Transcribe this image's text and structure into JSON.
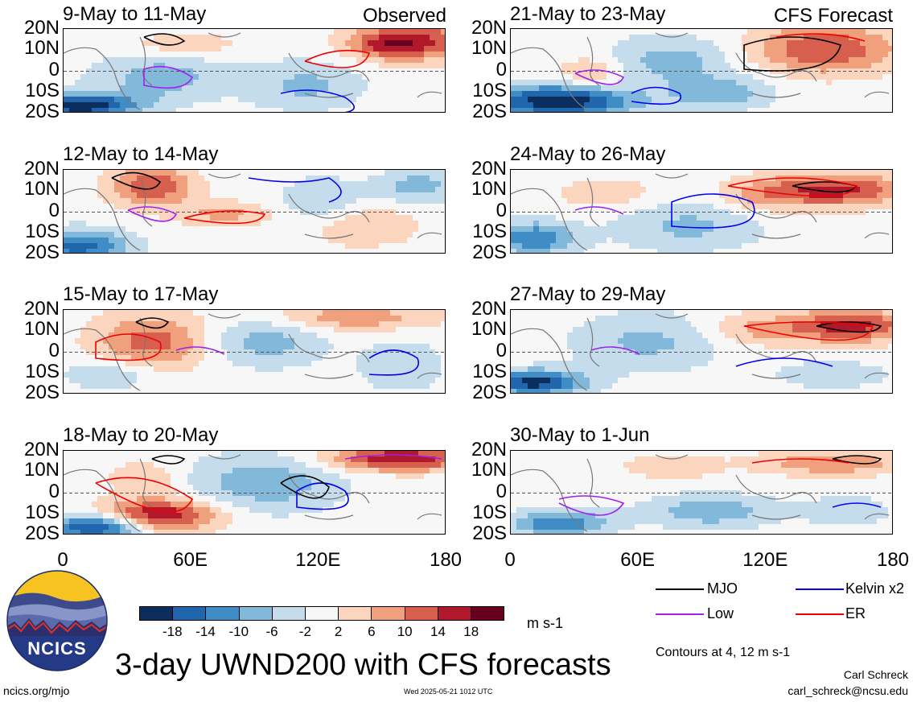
{
  "header": {
    "observed_label": "Observed",
    "forecast_label": "CFS Forecast"
  },
  "panels_left": [
    {
      "title": "9-May to 11-May"
    },
    {
      "title": "12-May to 14-May"
    },
    {
      "title": "15-May to 17-May"
    },
    {
      "title": "18-May to 20-May"
    }
  ],
  "panels_right": [
    {
      "title": "21-May to 23-May"
    },
    {
      "title": "24-May to 26-May"
    },
    {
      "title": "27-May to 29-May"
    },
    {
      "title": "30-May to 1-Jun"
    }
  ],
  "lat_labels": [
    "20N",
    "10N",
    "0",
    "10S",
    "20S"
  ],
  "lon_labels": [
    "0",
    "60E",
    "120E",
    "180"
  ],
  "colorbar": {
    "ticks": [
      "-18",
      "-14",
      "-10",
      "-6",
      "-2",
      "2",
      "6",
      "10",
      "14",
      "18"
    ],
    "colors": [
      "#0b2e5f",
      "#2166ac",
      "#3f8dc4",
      "#82b9da",
      "#c5dcec",
      "#f7f7f7",
      "#fcd5bf",
      "#f0a07c",
      "#d6604d",
      "#b2182b",
      "#67001f"
    ],
    "units": "m s-1"
  },
  "legend": {
    "items": [
      {
        "label": "MJO",
        "color": "#000000"
      },
      {
        "label": "Kelvin x2",
        "color": "#0000ee"
      },
      {
        "label": "Low",
        "color": "#a020f0"
      },
      {
        "label": "ER",
        "color": "#ee0000"
      }
    ],
    "note": "Contours at 4, 12 m s-1"
  },
  "title": "3-day UWND200 with CFS forecasts",
  "logo_text": "NCICS",
  "footer": {
    "site": "ncics.org/mjo",
    "timestamp": "Wed 2025-05-21 1012 UTC",
    "author": "Carl Schreck",
    "email": "carl_schreck@ncsu.edu"
  }
}
